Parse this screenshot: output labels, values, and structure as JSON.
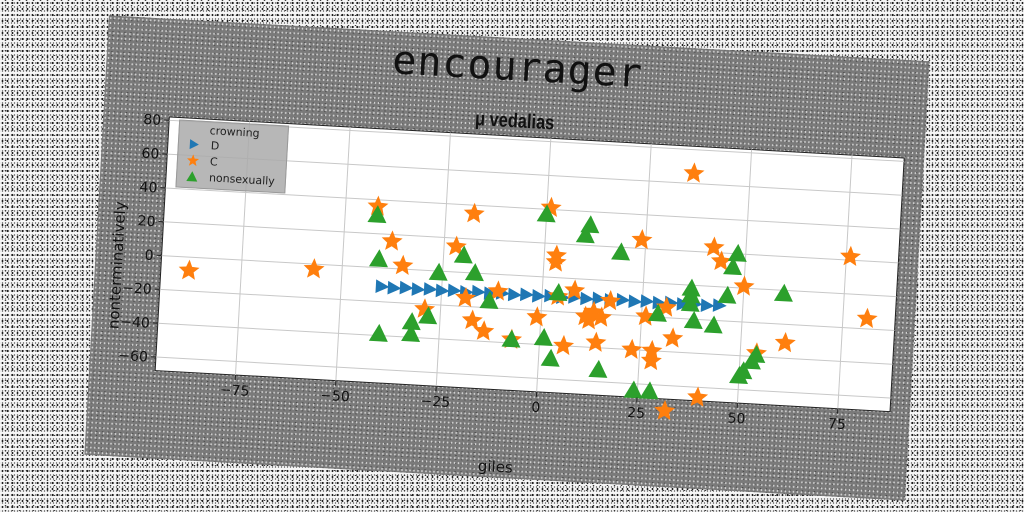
{
  "chart_data": {
    "type": "scatter",
    "suptitle": "encourager",
    "title": "μ vedalias",
    "xlabel": "giles",
    "ylabel": "nonterminatively",
    "xlim": [
      -95,
      88
    ],
    "ylim": [
      -68,
      82
    ],
    "xticks": [
      -75,
      -50,
      -25,
      0,
      25,
      50,
      75
    ],
    "yticks": [
      -60,
      -40,
      -20,
      0,
      20,
      40,
      60,
      80
    ],
    "grid": true,
    "legend": {
      "title": "crowning",
      "placement": "top-left",
      "entries": [
        "D",
        "C",
        "nonsexually"
      ]
    },
    "series": [
      {
        "name": "D",
        "marker": "triangle-right",
        "color": "#1f77b4",
        "points": [
          [
            -40,
            -11
          ],
          [
            -37,
            -11.5
          ],
          [
            -34,
            -11
          ],
          [
            -31,
            -11.5
          ],
          [
            -28,
            -11
          ],
          [
            -25,
            -11.5
          ],
          [
            -22,
            -11
          ],
          [
            -19,
            -11.5
          ],
          [
            -16,
            -11
          ],
          [
            -13,
            -11.5
          ],
          [
            -10,
            -11
          ],
          [
            -7,
            -11.5
          ],
          [
            -4,
            -11
          ],
          [
            -1,
            -11.5
          ],
          [
            2,
            -11
          ],
          [
            5,
            -11.5
          ],
          [
            8,
            -11
          ],
          [
            11,
            -11.5
          ],
          [
            14,
            -11
          ],
          [
            17,
            -11.5
          ],
          [
            20,
            -11
          ],
          [
            23,
            -11.5
          ],
          [
            26,
            -11
          ],
          [
            29,
            -11.5
          ],
          [
            32,
            -11
          ],
          [
            35,
            -11.5
          ],
          [
            38,
            -11
          ],
          [
            41,
            -11.5
          ],
          [
            44,
            -11
          ]
        ]
      },
      {
        "name": "C",
        "marker": "star",
        "color": "#ff7f0e",
        "points": [
          [
            -88,
            -8
          ],
          [
            -57,
            -3
          ],
          [
            -42,
            36
          ],
          [
            -38,
            16
          ],
          [
            -35,
            2
          ],
          [
            -29,
            -23
          ],
          [
            -22,
            15
          ],
          [
            -19,
            -15
          ],
          [
            -18,
            35
          ],
          [
            -17,
            -28
          ],
          [
            -14,
            -34
          ],
          [
            -11,
            -10
          ],
          [
            -7,
            -38
          ],
          [
            -1,
            -24
          ],
          [
            1,
            41
          ],
          [
            3,
            13
          ],
          [
            3,
            9
          ],
          [
            4,
            -11
          ],
          [
            6,
            -40
          ],
          [
            8,
            -7
          ],
          [
            11,
            -22
          ],
          [
            12,
            -24
          ],
          [
            13,
            -19
          ],
          [
            14,
            -37
          ],
          [
            15,
            -22
          ],
          [
            17,
            -12
          ],
          [
            23,
            -40
          ],
          [
            24,
            25
          ],
          [
            26,
            -20
          ],
          [
            28,
            -40
          ],
          [
            28,
            -46
          ],
          [
            31,
            -14
          ],
          [
            33,
            -32
          ],
          [
            32,
            -75
          ],
          [
            36,
            66
          ],
          [
            40,
            -66
          ],
          [
            42,
            23
          ],
          [
            44,
            15
          ],
          [
            50,
            1
          ],
          [
            54,
            -38
          ],
          [
            61,
            -31
          ],
          [
            76,
            22
          ],
          [
            81,
            -14
          ]
        ]
      },
      {
        "name": "nonsexually",
        "marker": "triangle-up",
        "color": "#2ca02c",
        "points": [
          [
            -42,
            31
          ],
          [
            -41,
            5
          ],
          [
            -40,
            -39
          ],
          [
            -32,
            -38
          ],
          [
            -32,
            -31
          ],
          [
            -28,
            -27
          ],
          [
            -26,
            -1
          ],
          [
            -20,
            10
          ],
          [
            -17,
            0
          ],
          [
            -13,
            -16
          ],
          [
            -7,
            -38
          ],
          [
            0,
            37
          ],
          [
            1,
            -36
          ],
          [
            3,
            -48
          ],
          [
            4,
            -9
          ],
          [
            10,
            26
          ],
          [
            11,
            32
          ],
          [
            19,
            17
          ],
          [
            15,
            -53
          ],
          [
            24,
            -64
          ],
          [
            28,
            -64
          ],
          [
            29,
            -18
          ],
          [
            37,
            -2
          ],
          [
            37,
            -6
          ],
          [
            37,
            -11
          ],
          [
            38,
            -21
          ],
          [
            43,
            -23
          ],
          [
            47,
            12
          ],
          [
            48,
            20
          ],
          [
            50,
            -52
          ],
          [
            51,
            -49
          ],
          [
            53,
            -43
          ],
          [
            54,
            -39
          ],
          [
            60,
            -2
          ],
          [
            46,
            -5
          ]
        ]
      }
    ]
  }
}
